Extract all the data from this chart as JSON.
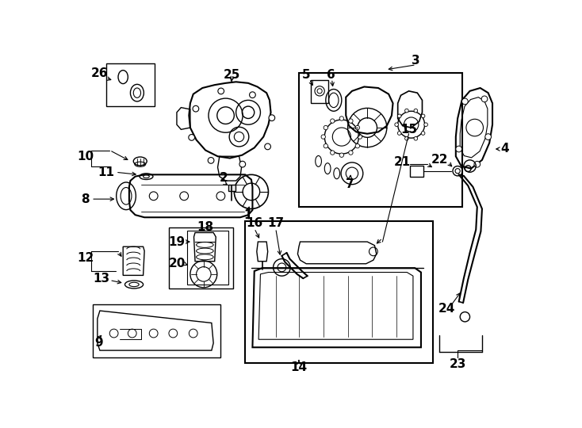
{
  "bg": "#ffffff",
  "lc": "#000000",
  "fig_w": 7.34,
  "fig_h": 5.4,
  "dpi": 100
}
